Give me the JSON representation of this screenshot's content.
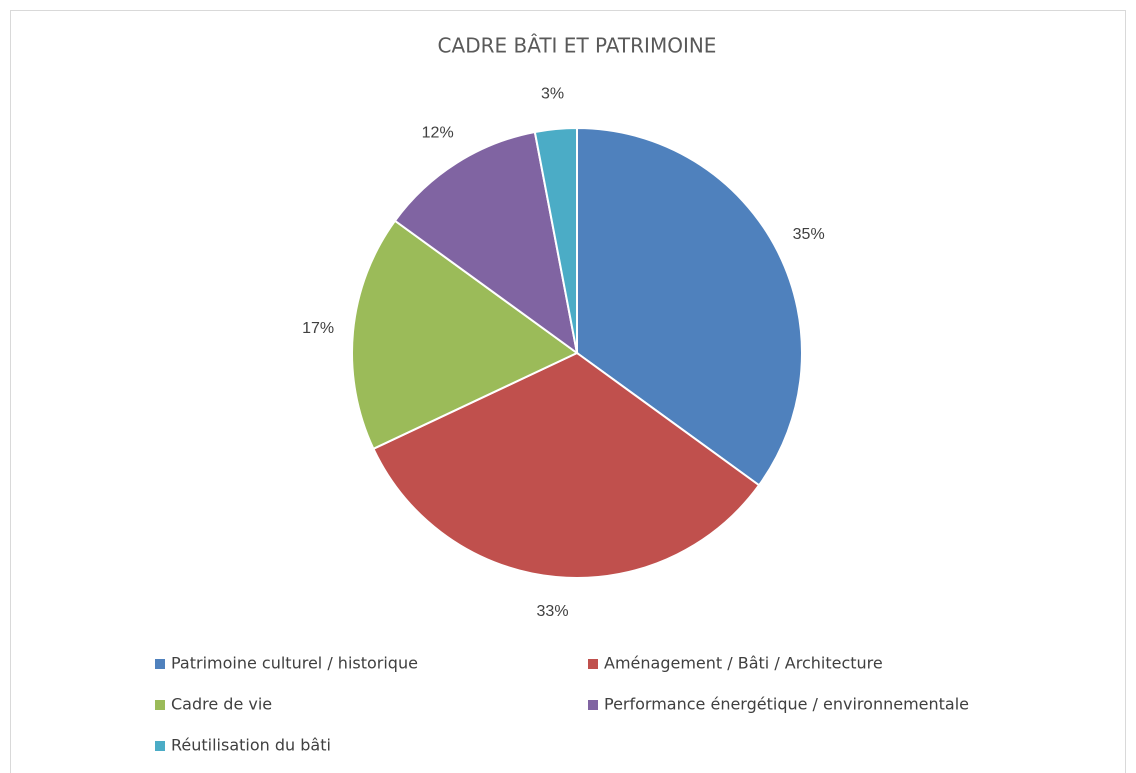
{
  "chart_data": {
    "type": "pie",
    "title": "CADRE BÂTI ET PATRIMOINE",
    "categories": [
      "Patrimoine culturel / historique",
      "Aménagement / Bâti / Architecture",
      "Cadre de vie",
      "Performance énergétique / environnementale",
      "Réutilisation du bâti"
    ],
    "values": [
      35,
      33,
      17,
      12,
      3
    ],
    "value_labels": [
      "35%",
      "33%",
      "17%",
      "12%",
      "3%"
    ],
    "colors": [
      "#4f81bd",
      "#c0504d",
      "#9bbb59",
      "#8064a2",
      "#4bacc6"
    ],
    "legend": "bottom"
  }
}
